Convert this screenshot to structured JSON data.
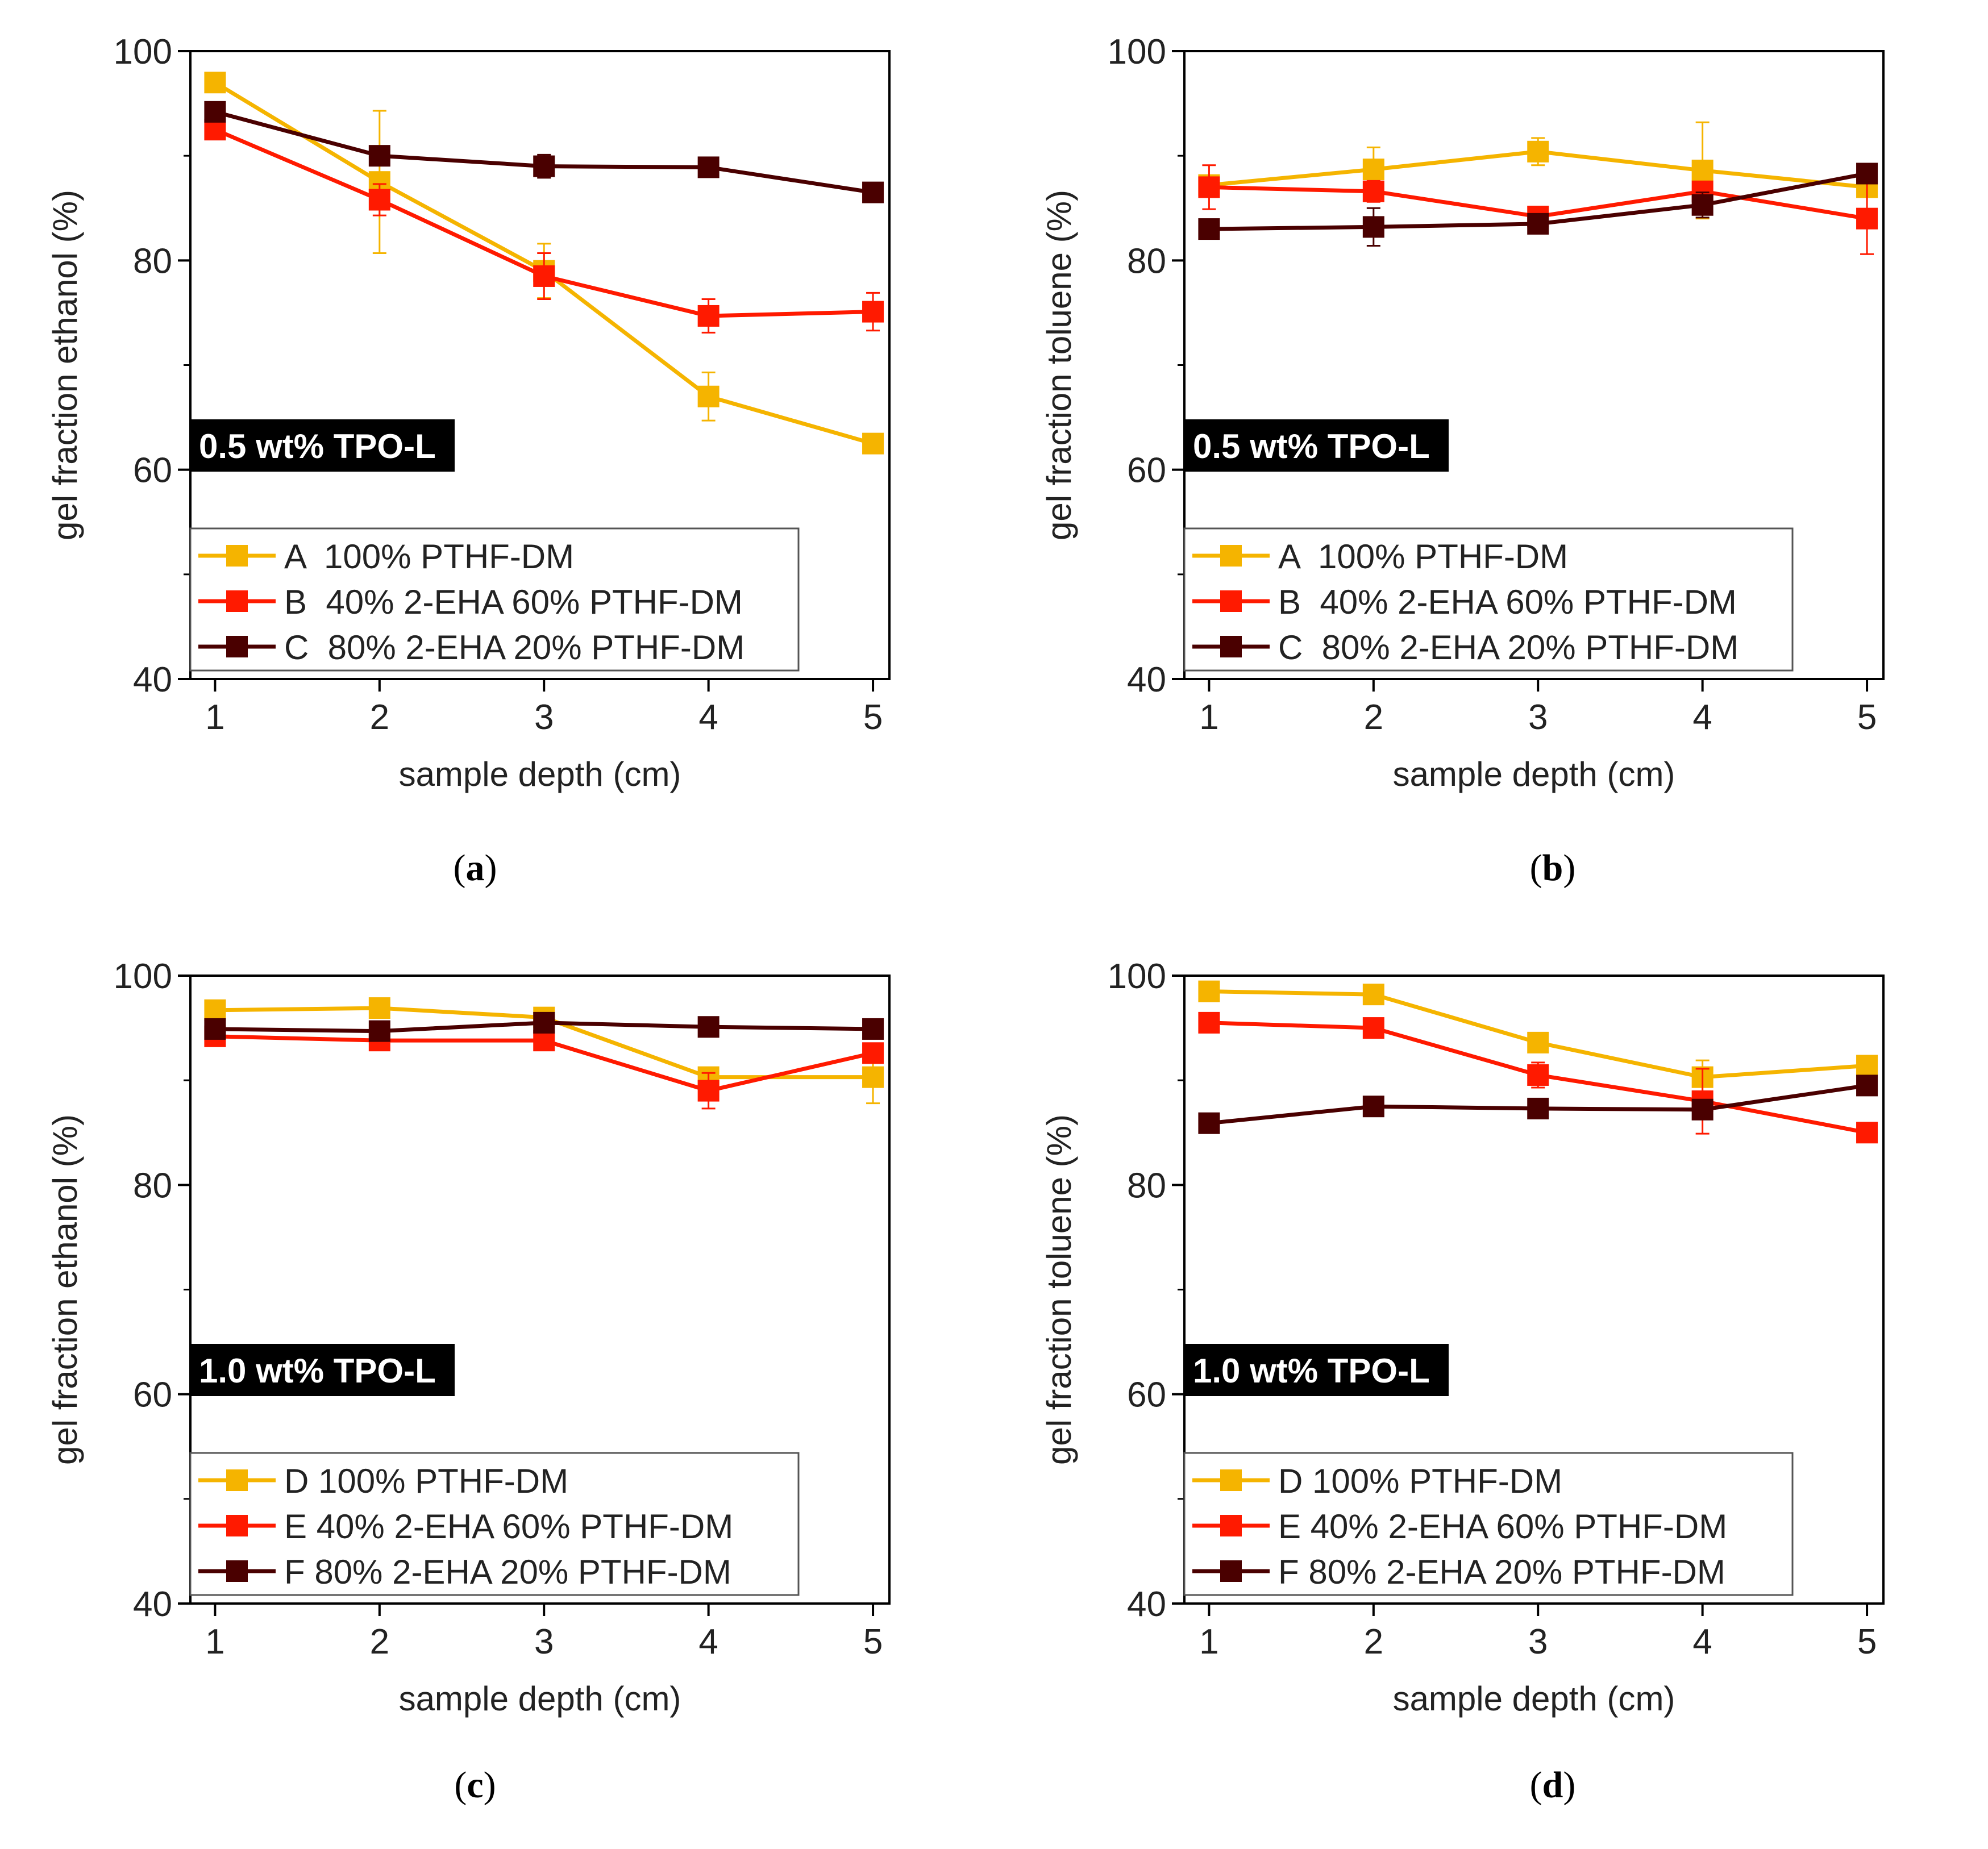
{
  "chart_data": [
    {
      "panel": "a",
      "type": "line",
      "xlabel": "sample depth (cm)",
      "ylabel": "gel fraction ethanol (%)",
      "x": [
        1,
        2,
        3,
        4,
        5
      ],
      "xlim": [
        0.85,
        5.1
      ],
      "ylim": [
        40,
        100
      ],
      "xticks": [
        1,
        2,
        3,
        4,
        5
      ],
      "yticks": [
        40,
        60,
        80,
        100
      ],
      "annotation": "0.5 wt% TPO-L",
      "legend_position": "lower-left",
      "series": [
        {
          "name": "A  100% PTHF-DM",
          "color": "#f5b400",
          "values": [
            97.0,
            87.5,
            79.0,
            67.0,
            62.5
          ],
          "errors": [
            0.5,
            6.8,
            2.6,
            2.3,
            0.5
          ]
        },
        {
          "name": "B  40% 2-EHA 60% PTHF-DM",
          "color": "#ff1a00",
          "values": [
            92.5,
            85.8,
            78.5,
            74.7,
            75.1
          ],
          "errors": [
            0.6,
            1.5,
            2.2,
            1.6,
            1.8
          ]
        },
        {
          "name": "C  80% 2-EHA 20% PTHF-DM",
          "color": "#4a0000",
          "values": [
            94.2,
            90.0,
            89.0,
            88.9,
            86.5
          ],
          "errors": [
            0.4,
            0.5,
            1.1,
            0.6,
            0.5
          ]
        }
      ]
    },
    {
      "panel": "b",
      "type": "line",
      "xlabel": "sample depth (cm)",
      "ylabel": "gel fraction toluene (%)",
      "x": [
        1,
        2,
        3,
        4,
        5
      ],
      "xlim": [
        0.85,
        5.1
      ],
      "ylim": [
        40,
        100
      ],
      "xticks": [
        1,
        2,
        3,
        4,
        5
      ],
      "yticks": [
        40,
        60,
        80,
        100
      ],
      "annotation": "0.5 wt% TPO-L",
      "legend_position": "lower-left",
      "series": [
        {
          "name": "A  100% PTHF-DM",
          "color": "#f5b400",
          "values": [
            87.2,
            88.7,
            90.4,
            88.6,
            87.0
          ],
          "errors": [
            0.5,
            2.1,
            1.3,
            4.6,
            0.5
          ]
        },
        {
          "name": "B  40% 2-EHA 60% PTHF-DM",
          "color": "#ff1a00",
          "values": [
            87.0,
            86.6,
            84.2,
            86.6,
            84.0
          ],
          "errors": [
            2.1,
            1.0,
            0.6,
            0.7,
            3.4
          ]
        },
        {
          "name": "C  80% 2-EHA 20% PTHF-DM",
          "color": "#4a0000",
          "values": [
            83.0,
            83.2,
            83.5,
            85.3,
            88.3
          ],
          "errors": [
            0.5,
            1.8,
            0.6,
            1.2,
            0.5
          ]
        }
      ]
    },
    {
      "panel": "c",
      "type": "line",
      "xlabel": "sample depth (cm)",
      "ylabel": "gel fraction ethanol (%)",
      "x": [
        1,
        2,
        3,
        4,
        5
      ],
      "xlim": [
        0.85,
        5.1
      ],
      "ylim": [
        40,
        100
      ],
      "xticks": [
        1,
        2,
        3,
        4,
        5
      ],
      "yticks": [
        40,
        60,
        80,
        100
      ],
      "annotation": "1.0 wt% TPO-L",
      "legend_position": "lower-left",
      "series": [
        {
          "name": "D 100% PTHF-DM",
          "color": "#f5b400",
          "values": [
            96.7,
            96.9,
            96.0,
            90.3,
            90.3
          ],
          "errors": [
            0.3,
            0.3,
            0.3,
            0.8,
            2.5
          ]
        },
        {
          "name": "E 40% 2-EHA 60% PTHF-DM",
          "color": "#ff1a00",
          "values": [
            94.2,
            93.8,
            93.8,
            89.0,
            92.6
          ],
          "errors": [
            0.3,
            0.3,
            0.3,
            1.7,
            0.5
          ]
        },
        {
          "name": "F 80% 2-EHA 20% PTHF-DM",
          "color": "#4a0000",
          "values": [
            94.9,
            94.7,
            95.5,
            95.1,
            94.9
          ],
          "errors": [
            0.5,
            0.5,
            0.7,
            0.3,
            0.3
          ]
        }
      ]
    },
    {
      "panel": "d",
      "type": "line",
      "xlabel": "sample depth (cm)",
      "ylabel": "gel fraction toluene (%)",
      "x": [
        1,
        2,
        3,
        4,
        5
      ],
      "xlim": [
        0.85,
        5.1
      ],
      "ylim": [
        40,
        100
      ],
      "xticks": [
        1,
        2,
        3,
        4,
        5
      ],
      "yticks": [
        40,
        60,
        80,
        100
      ],
      "annotation": "1.0 wt% TPO-L",
      "legend_position": "lower-left",
      "series": [
        {
          "name": "D 100% PTHF-DM",
          "color": "#f5b400",
          "values": [
            98.5,
            98.2,
            93.6,
            90.3,
            91.4
          ],
          "errors": [
            0.3,
            0.3,
            0.5,
            1.6,
            0.5
          ]
        },
        {
          "name": "E 40% 2-EHA 60% PTHF-DM",
          "color": "#ff1a00",
          "values": [
            95.5,
            95.0,
            90.5,
            88.0,
            85.0
          ],
          "errors": [
            0.4,
            0.4,
            1.2,
            3.1,
            0.3
          ]
        },
        {
          "name": "F 80% 2-EHA 20% PTHF-DM",
          "color": "#4a0000",
          "values": [
            85.9,
            87.5,
            87.3,
            87.2,
            89.5
          ],
          "errors": [
            0.3,
            0.4,
            0.3,
            0.6,
            0.4
          ]
        }
      ]
    }
  ],
  "captions": [
    "a",
    "b",
    "c",
    "d"
  ]
}
